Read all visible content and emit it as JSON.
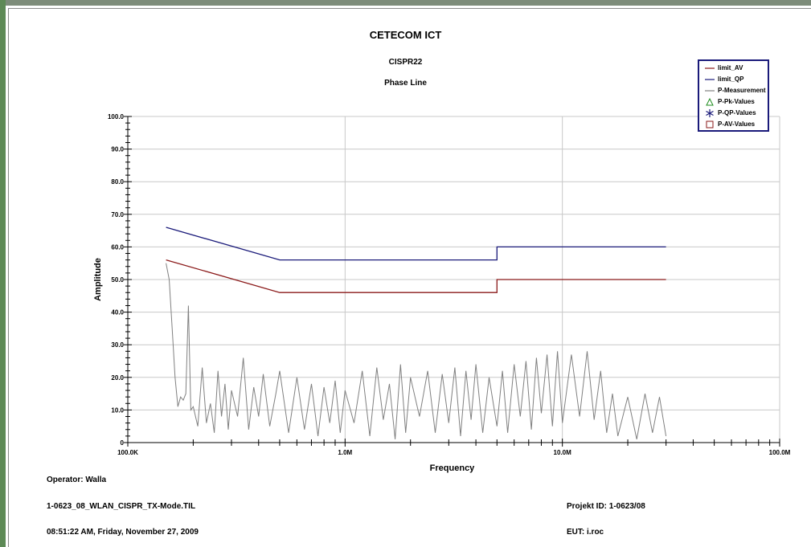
{
  "report": {
    "title": "CETECOM ICT",
    "subtitle": "CISPR22",
    "subtitle2": "Phase Line",
    "operator": "Operator: Walla",
    "filename": "1-0623_08_WLAN_CISPR_TX-Mode.TIL",
    "datetime": "08:51:22 AM, Friday, November 27, 2009",
    "projekt": "Projekt ID: 1-0623/08",
    "eut": "EUT: i.roc"
  },
  "legend": {
    "placement": "top-right",
    "items": [
      {
        "label": "limit_AV",
        "symbol": "line",
        "color": "#8b1a1a"
      },
      {
        "label": "limit_QP",
        "symbol": "line",
        "color": "#1a1a7a"
      },
      {
        "label": "P-Measurement",
        "symbol": "line",
        "color": "#808080"
      },
      {
        "label": "P-Pk-Values",
        "symbol": "triangle",
        "color": "#1e8c1e"
      },
      {
        "label": "P-QP-Values",
        "symbol": "asterisk",
        "color": "#1a1a7a"
      },
      {
        "label": "P-AV-Values",
        "symbol": "square",
        "color": "#8b1a1a"
      }
    ]
  },
  "chart_data": {
    "type": "line",
    "title": "CETECOM ICT",
    "subtitle": "CISPR22",
    "xlabel": "Frequency",
    "ylabel": "Amplitude",
    "xscale": "log",
    "xlim": [
      100000,
      100000000
    ],
    "ylim": [
      0,
      100
    ],
    "grid": true,
    "legend_placement": "top-right",
    "x_ticks": [
      {
        "value": 100000,
        "label": "100.0K"
      },
      {
        "value": 1000000,
        "label": "1.0M"
      },
      {
        "value": 10000000,
        "label": "10.0M"
      },
      {
        "value": 100000000,
        "label": "100.0M"
      }
    ],
    "y_ticks": [
      {
        "value": 0,
        "label": "0"
      },
      {
        "value": 10,
        "label": "10.0"
      },
      {
        "value": 20,
        "label": "20.0"
      },
      {
        "value": 30,
        "label": "30.0"
      },
      {
        "value": 40,
        "label": "40.0"
      },
      {
        "value": 50,
        "label": "50.0"
      },
      {
        "value": 60,
        "label": "60.0"
      },
      {
        "value": 70,
        "label": "70.0"
      },
      {
        "value": 80,
        "label": "80.0"
      },
      {
        "value": 90,
        "label": "90.0"
      },
      {
        "value": 100,
        "label": "100.0"
      }
    ],
    "series": [
      {
        "name": "limit_QP",
        "color": "#1a1a7a",
        "x": [
          150000,
          500000,
          5000000,
          5000000,
          30000000
        ],
        "y": [
          66,
          56,
          56,
          60,
          60
        ]
      },
      {
        "name": "limit_AV",
        "color": "#8b1a1a",
        "x": [
          150000,
          500000,
          5000000,
          5000000,
          30000000
        ],
        "y": [
          56,
          46,
          46,
          50,
          50
        ]
      },
      {
        "name": "P-Measurement",
        "color": "#808080",
        "x": [
          150000,
          155000,
          160000,
          165000,
          170000,
          175000,
          180000,
          185000,
          190000,
          195000,
          200000,
          210000,
          220000,
          230000,
          240000,
          250000,
          260000,
          270000,
          280000,
          290000,
          300000,
          320000,
          340000,
          360000,
          380000,
          400000,
          420000,
          450000,
          480000,
          500000,
          550000,
          600000,
          650000,
          700000,
          750000,
          800000,
          850000,
          900000,
          950000,
          1000000,
          1100000,
          1200000,
          1300000,
          1400000,
          1500000,
          1600000,
          1700000,
          1800000,
          1900000,
          2000000,
          2200000,
          2400000,
          2600000,
          2800000,
          3000000,
          3200000,
          3400000,
          3600000,
          3800000,
          4000000,
          4300000,
          4600000,
          5000000,
          5300000,
          5600000,
          6000000,
          6400000,
          6800000,
          7200000,
          7600000,
          8000000,
          8500000,
          9000000,
          9500000,
          10000000,
          11000000,
          12000000,
          13000000,
          14000000,
          15000000,
          16000000,
          17000000,
          18000000,
          20000000,
          22000000,
          24000000,
          26000000,
          28000000,
          30000000
        ],
        "y": [
          55,
          50,
          35,
          20,
          11,
          14,
          13,
          15,
          42,
          10,
          11,
          5,
          23,
          6,
          12,
          3,
          22,
          8,
          18,
          4,
          16,
          8,
          26,
          4,
          17,
          8,
          21,
          5,
          15,
          22,
          3,
          20,
          4,
          18,
          2,
          17,
          6,
          19,
          3,
          16,
          6,
          22,
          2,
          23,
          7,
          18,
          1,
          24,
          3,
          20,
          8,
          22,
          3,
          21,
          6,
          23,
          2,
          22,
          7,
          24,
          3,
          20,
          5,
          22,
          3,
          24,
          8,
          25,
          4,
          26,
          9,
          27,
          5,
          28,
          6,
          27,
          8,
          28,
          7,
          22,
          3,
          15,
          2,
          14,
          1,
          15,
          3,
          14,
          2
        ]
      }
    ]
  }
}
